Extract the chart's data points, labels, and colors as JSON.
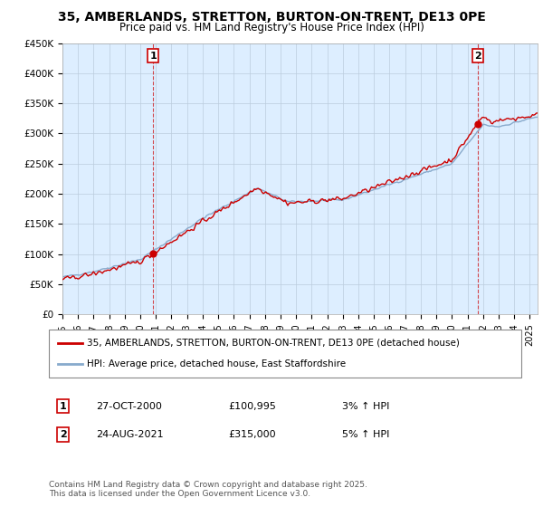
{
  "title": "35, AMBERLANDS, STRETTON, BURTON-ON-TRENT, DE13 0PE",
  "subtitle": "Price paid vs. HM Land Registry's House Price Index (HPI)",
  "ylim": [
    0,
    450000
  ],
  "yticks": [
    0,
    50000,
    100000,
    150000,
    200000,
    250000,
    300000,
    350000,
    400000,
    450000
  ],
  "ytick_labels": [
    "£0",
    "£50K",
    "£100K",
    "£150K",
    "£200K",
    "£250K",
    "£300K",
    "£350K",
    "£400K",
    "£450K"
  ],
  "xlim_start": 1995,
  "xlim_end": 2025.5,
  "sale1_year": 2000.82,
  "sale1_price": 100995,
  "sale1_label": "1",
  "sale2_year": 2021.65,
  "sale2_price": 315000,
  "sale2_label": "2",
  "red_line_color": "#cc0000",
  "blue_line_color": "#88aacc",
  "chart_bg_color": "#ddeeff",
  "vline_color": "#cc0000",
  "legend_red_label": "35, AMBERLANDS, STRETTON, BURTON-ON-TRENT, DE13 0PE (detached house)",
  "legend_blue_label": "HPI: Average price, detached house, East Staffordshire",
  "table_row1": [
    "1",
    "27-OCT-2000",
    "£100,995",
    "3% ↑ HPI"
  ],
  "table_row2": [
    "2",
    "24-AUG-2021",
    "£315,000",
    "5% ↑ HPI"
  ],
  "footnote": "Contains HM Land Registry data © Crown copyright and database right 2025.\nThis data is licensed under the Open Government Licence v3.0.",
  "background_color": "#ffffff",
  "grid_color": "#bbccdd",
  "box_border_color": "#cc0000"
}
